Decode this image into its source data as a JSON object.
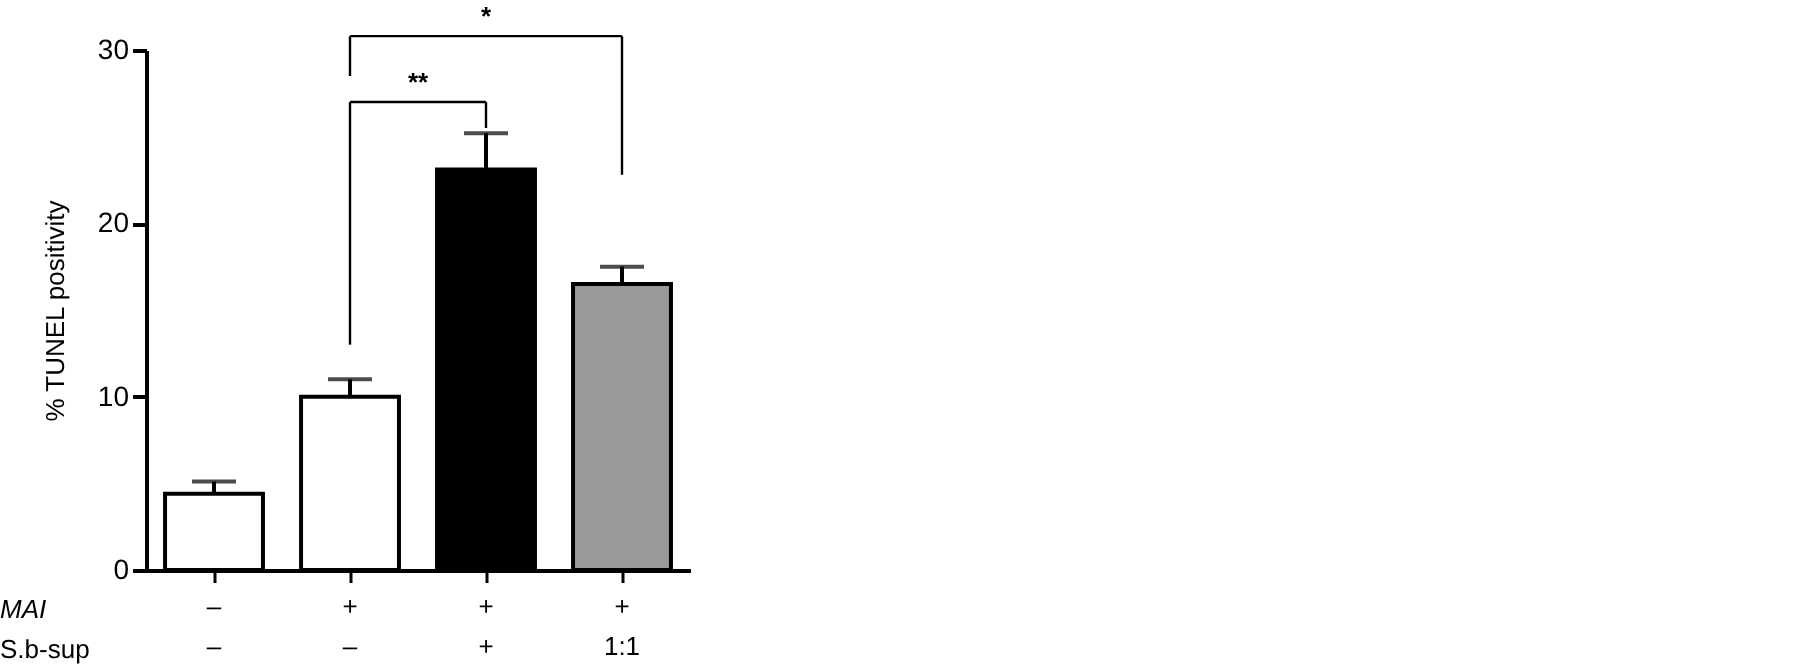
{
  "chart_data": {
    "type": "bar",
    "ylabel": "% TUNEL positivity",
    "categories": [
      "–\n–",
      "+\n–",
      "+\n+",
      "+\n1:1"
    ],
    "values": [
      4.4,
      10.0,
      23.1,
      16.5
    ],
    "errors": [
      0.7,
      1.0,
      2.1,
      1.0
    ],
    "colors": [
      "#ffffff",
      "#ffffff",
      "#000000",
      "#999999"
    ],
    "ylim": [
      0,
      30
    ],
    "yticks": [
      0,
      10,
      20,
      30
    ],
    "annotations": [
      "**",
      "*",
      "MAI",
      "S.b-sup"
    ]
  }
}
